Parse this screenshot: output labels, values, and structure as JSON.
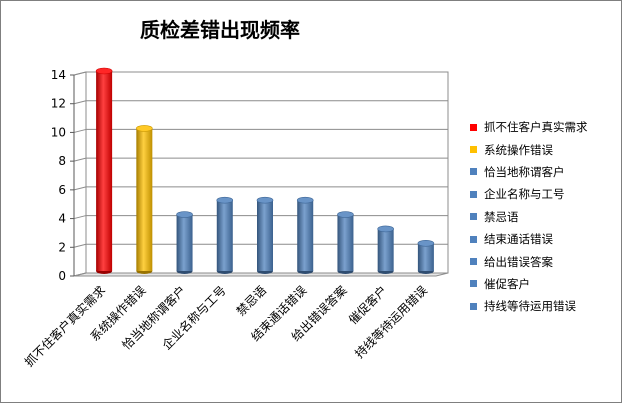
{
  "chart_data": {
    "type": "bar",
    "title": "质检差错出现频率",
    "categories": [
      "抓不住客户真实需求",
      "系统操作错误",
      "恰当地称谓客户",
      "企业名称与工号",
      "禁忌语",
      "结束通话错误",
      "给出错误答案",
      "催促客户",
      "持线等待运用错误"
    ],
    "values": [
      14,
      10,
      4,
      5,
      5,
      5,
      4,
      3,
      2
    ],
    "colors": [
      "#ff0000",
      "#ffc000",
      "#4f81bd",
      "#4f81bd",
      "#4f81bd",
      "#4f81bd",
      "#4f81bd",
      "#4f81bd",
      "#4f81bd"
    ],
    "ylim": [
      0,
      14
    ],
    "yticks": [
      "0",
      "2",
      "4",
      "6",
      "8",
      "10",
      "12",
      "14"
    ],
    "grid": true,
    "legend_position": "right",
    "legend": [
      {
        "label": "抓不住客户真实需求",
        "color": "#ff0000"
      },
      {
        "label": "系统操作错误",
        "color": "#ffc000"
      },
      {
        "label": "恰当地称谓客户",
        "color": "#4f81bd"
      },
      {
        "label": "企业名称与工号",
        "color": "#4f81bd"
      },
      {
        "label": "禁忌语",
        "color": "#4f81bd"
      },
      {
        "label": "结束通话错误",
        "color": "#4f81bd"
      },
      {
        "label": "给出错误答案",
        "color": "#4f81bd"
      },
      {
        "label": "催促客户",
        "color": "#4f81bd"
      },
      {
        "label": "持线等待运用错误",
        "color": "#4f81bd"
      }
    ]
  }
}
